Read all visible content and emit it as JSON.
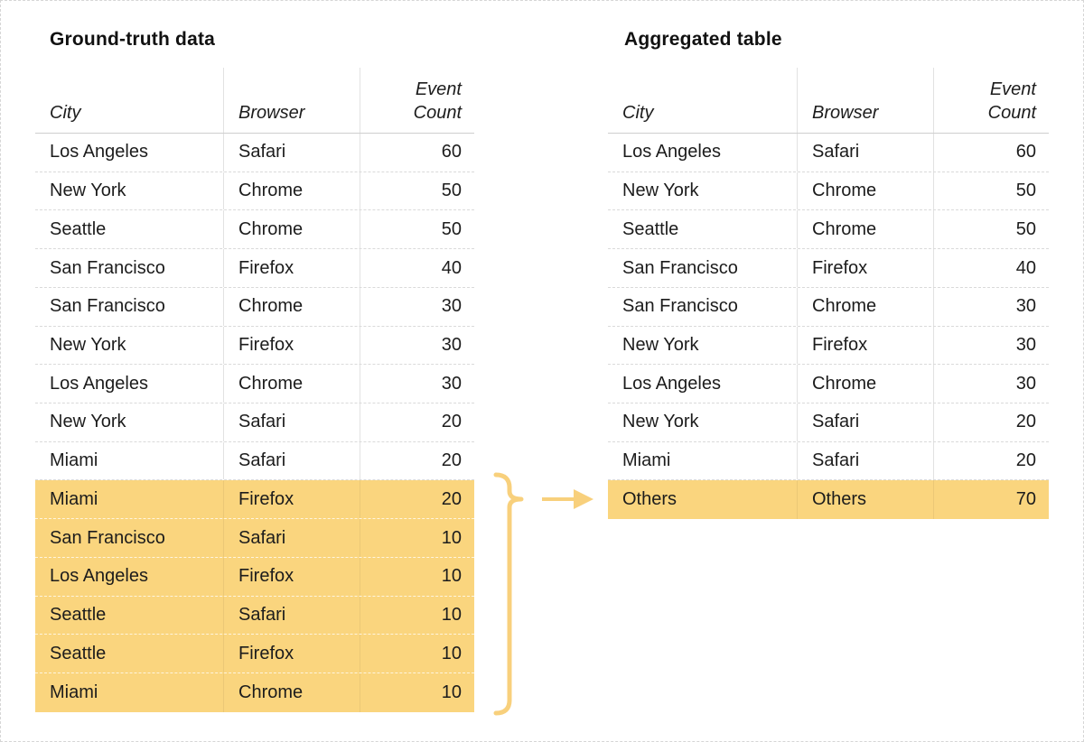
{
  "colors": {
    "highlight": "#fad57e",
    "accent": "#f8d07c",
    "divider": "#dadada",
    "text": "#1c1c1c"
  },
  "left_table": {
    "title": "Ground-truth data",
    "columns": [
      "City",
      "Browser",
      "Event Count"
    ],
    "rows": [
      {
        "city": "Los Angeles",
        "browser": "Safari",
        "count": "60",
        "highlight": false
      },
      {
        "city": "New York",
        "browser": "Chrome",
        "count": "50",
        "highlight": false
      },
      {
        "city": "Seattle",
        "browser": "Chrome",
        "count": "50",
        "highlight": false
      },
      {
        "city": "San Francisco",
        "browser": "Firefox",
        "count": "40",
        "highlight": false
      },
      {
        "city": "San Francisco",
        "browser": "Chrome",
        "count": "30",
        "highlight": false
      },
      {
        "city": "New York",
        "browser": "Firefox",
        "count": "30",
        "highlight": false
      },
      {
        "city": "Los Angeles",
        "browser": "Chrome",
        "count": "30",
        "highlight": false
      },
      {
        "city": "New York",
        "browser": "Safari",
        "count": "20",
        "highlight": false
      },
      {
        "city": "Miami",
        "browser": "Safari",
        "count": "20",
        "highlight": false
      },
      {
        "city": "Miami",
        "browser": "Firefox",
        "count": "20",
        "highlight": true
      },
      {
        "city": "San Francisco",
        "browser": "Safari",
        "count": "10",
        "highlight": true
      },
      {
        "city": "Los Angeles",
        "browser": "Firefox",
        "count": "10",
        "highlight": true
      },
      {
        "city": "Seattle",
        "browser": "Safari",
        "count": "10",
        "highlight": true
      },
      {
        "city": "Seattle",
        "browser": "Firefox",
        "count": "10",
        "highlight": true
      },
      {
        "city": "Miami",
        "browser": "Chrome",
        "count": "10",
        "highlight": true
      }
    ]
  },
  "right_table": {
    "title": "Aggregated table",
    "columns": [
      "City",
      "Browser",
      "Event Count"
    ],
    "rows": [
      {
        "city": "Los Angeles",
        "browser": "Safari",
        "count": "60",
        "highlight": false
      },
      {
        "city": "New York",
        "browser": "Chrome",
        "count": "50",
        "highlight": false
      },
      {
        "city": "Seattle",
        "browser": "Chrome",
        "count": "50",
        "highlight": false
      },
      {
        "city": "San Francisco",
        "browser": "Firefox",
        "count": "40",
        "highlight": false
      },
      {
        "city": "San Francisco",
        "browser": "Chrome",
        "count": "30",
        "highlight": false
      },
      {
        "city": "New York",
        "browser": "Firefox",
        "count": "30",
        "highlight": false
      },
      {
        "city": "Los Angeles",
        "browser": "Chrome",
        "count": "30",
        "highlight": false
      },
      {
        "city": "New York",
        "browser": "Safari",
        "count": "20",
        "highlight": false
      },
      {
        "city": "Miami",
        "browser": "Safari",
        "count": "20",
        "highlight": false
      },
      {
        "city": "Others",
        "browser": "Others",
        "count": "70",
        "highlight": true
      }
    ]
  },
  "annotation": {
    "brace_icon": "curly-brace",
    "arrow_icon": "right-arrow"
  }
}
